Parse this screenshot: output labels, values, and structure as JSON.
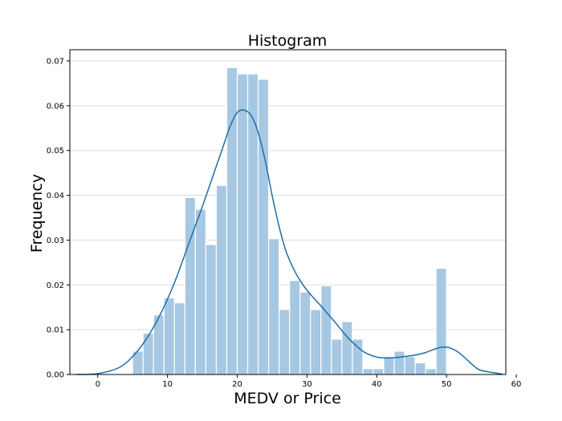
{
  "chart_data": {
    "type": "bar",
    "title": "Histogram",
    "xlabel": "MEDV or Price",
    "ylabel": "Frequency",
    "xlim": [
      -4,
      58.5
    ],
    "ylim": [
      0,
      0.0725
    ],
    "xticks": [
      0,
      10,
      20,
      30,
      40,
      50,
      60
    ],
    "yticks": [
      0.0,
      0.01,
      0.02,
      0.03,
      0.04,
      0.05,
      0.06,
      0.07
    ],
    "ytick_labels": [
      "0.00",
      "0.01",
      "0.02",
      "0.03",
      "0.04",
      "0.05",
      "0.06",
      "0.07"
    ],
    "grid": true,
    "bins": {
      "start": 5.0,
      "width": 1.5,
      "values": [
        0.0052,
        0.0092,
        0.0133,
        0.0171,
        0.016,
        0.0395,
        0.0369,
        0.029,
        0.0422,
        0.0685,
        0.0671,
        0.0671,
        0.0659,
        0.0303,
        0.0145,
        0.021,
        0.0184,
        0.0145,
        0.0198,
        0.0079,
        0.0118,
        0.0079,
        0.0013,
        0.0013,
        0.004,
        0.0052,
        0.004,
        0.0026,
        0.0013,
        0.0237
      ]
    },
    "kde": {
      "x": [
        -3,
        0,
        3,
        5,
        7,
        9,
        11,
        13,
        15,
        17,
        18,
        19,
        20,
        21,
        22,
        23,
        24,
        25,
        26,
        27,
        28,
        29,
        30,
        31,
        32,
        33,
        34,
        35,
        36,
        37,
        38,
        39,
        40,
        41,
        42,
        43,
        44,
        45,
        46,
        47,
        48,
        49,
        50,
        51,
        52,
        53,
        54,
        55,
        58
      ],
      "y": [
        0.0,
        0.0002,
        0.0015,
        0.004,
        0.008,
        0.0135,
        0.0205,
        0.029,
        0.0375,
        0.0465,
        0.051,
        0.0555,
        0.0585,
        0.059,
        0.0578,
        0.054,
        0.0478,
        0.04,
        0.033,
        0.0275,
        0.0238,
        0.021,
        0.0188,
        0.017,
        0.0153,
        0.0135,
        0.0117,
        0.0098,
        0.008,
        0.0065,
        0.0052,
        0.0044,
        0.0039,
        0.0037,
        0.0037,
        0.0038,
        0.004,
        0.0042,
        0.0045,
        0.0049,
        0.0055,
        0.006,
        0.0061,
        0.0056,
        0.0046,
        0.0032,
        0.0018,
        0.0009,
        0.0001
      ]
    },
    "colors": {
      "bar": "#a6c8e2",
      "line": "#1f6ea8"
    }
  }
}
